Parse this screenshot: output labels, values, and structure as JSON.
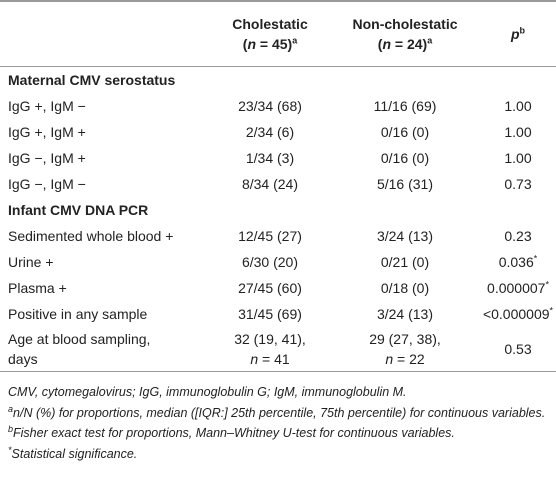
{
  "header": {
    "columns": [
      {
        "label": "Cholestatic",
        "open": "(",
        "var": "n",
        "rest": " = 45)",
        "note": "a"
      },
      {
        "label": "Non-cholestatic",
        "open": "(",
        "var": "n",
        "rest": " = 24)",
        "note": "a"
      },
      {
        "label": "p",
        "note": "b"
      }
    ]
  },
  "sections": [
    {
      "title": "Maternal CMV serostatus",
      "rows": [
        {
          "label": "IgG +, IgM −",
          "cholestatic": "23/34 (68)",
          "non_cholestatic": "11/16 (69)",
          "p": "1.00"
        },
        {
          "label": "IgG +, IgM +",
          "cholestatic": "2/34 (6)",
          "non_cholestatic": "0/16 (0)",
          "p": "1.00"
        },
        {
          "label": "IgG −, IgM +",
          "cholestatic": "1/34 (3)",
          "non_cholestatic": "0/16 (0)",
          "p": "1.00"
        },
        {
          "label": "IgG −, IgM −",
          "cholestatic": "8/34 (24)",
          "non_cholestatic": "5/16 (31)",
          "p": "0.73"
        }
      ]
    },
    {
      "title": "Infant CMV DNA PCR",
      "rows": [
        {
          "label": "Sedimented whole blood +",
          "cholestatic": "12/45 (27)",
          "non_cholestatic": "3/24 (13)",
          "p": "0.23"
        },
        {
          "label": "Urine +",
          "cholestatic": "6/30 (20)",
          "non_cholestatic": "0/21 (0)",
          "p": {
            "text": "0.036",
            "note": "*"
          }
        },
        {
          "label": "Plasma +",
          "cholestatic": "27/45 (60)",
          "non_cholestatic": "0/18 (0)",
          "p": {
            "text": "0.000007",
            "note": "*"
          }
        },
        {
          "label": "Positive in any sample",
          "cholestatic": "31/45 (69)",
          "non_cholestatic": "3/24 (13)",
          "p": {
            "text": "<0.000009",
            "note": "*"
          }
        },
        {
          "label": {
            "lines": [
              "Age at blood sampling,",
              "days"
            ]
          },
          "cholestatic": {
            "lines": [
              "32 (19, 41),"
            ],
            "var": "n",
            "rest": " = 41"
          },
          "non_cholestatic": {
            "lines": [
              "29 (27, 38),"
            ],
            "var": "n",
            "rest": " = 22"
          },
          "p": "0.53"
        }
      ]
    }
  ],
  "footnotes": [
    {
      "text": "CMV, cytomegalovirus; IgG, immunoglobulin G; IgM, immunoglobulin M."
    },
    {
      "mark": "a",
      "text": "n/N (%) for proportions, median ([IQR:] 25th percentile, 75th percentile) for continuous variables."
    },
    {
      "mark": "b",
      "text": "Fisher exact test for proportions, Mann–Whitney U-test for continuous variables."
    },
    {
      "mark": "*",
      "text": "Statistical significance."
    }
  ]
}
